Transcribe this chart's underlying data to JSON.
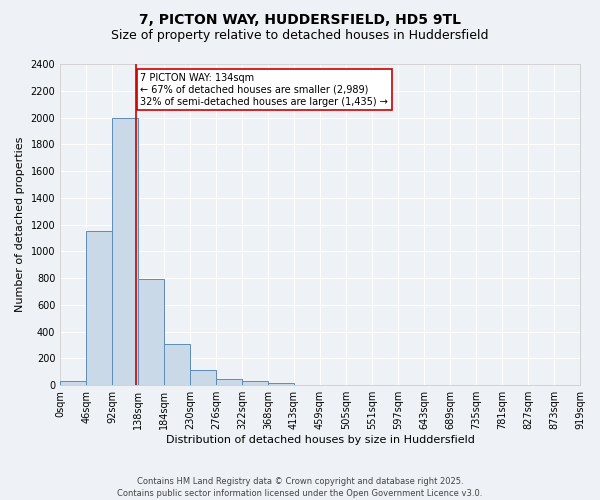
{
  "title_line1": "7, PICTON WAY, HUDDERSFIELD, HD5 9TL",
  "title_line2": "Size of property relative to detached houses in Huddersfield",
  "xlabel": "Distribution of detached houses by size in Huddersfield",
  "ylabel": "Number of detached properties",
  "bar_values": [
    30,
    1150,
    2000,
    795,
    310,
    110,
    50,
    35,
    15,
    5,
    0,
    0,
    0,
    0,
    0,
    0,
    0,
    0,
    0,
    0
  ],
  "bin_edges": [
    0,
    46,
    92,
    138,
    184,
    230,
    276,
    322,
    368,
    413,
    459,
    505,
    551,
    597,
    643,
    689,
    735,
    781,
    827,
    873,
    919
  ],
  "tick_labels": [
    "0sqm",
    "46sqm",
    "92sqm",
    "138sqm",
    "184sqm",
    "230sqm",
    "276sqm",
    "322sqm",
    "368sqm",
    "413sqm",
    "459sqm",
    "505sqm",
    "551sqm",
    "597sqm",
    "643sqm",
    "689sqm",
    "735sqm",
    "781sqm",
    "827sqm",
    "873sqm",
    "919sqm"
  ],
  "bar_color": "#c9d9e8",
  "bar_edge_color": "#5b8db8",
  "vline_x": 134,
  "vline_color": "#cc0000",
  "ylim": [
    0,
    2400
  ],
  "yticks": [
    0,
    200,
    400,
    600,
    800,
    1000,
    1200,
    1400,
    1600,
    1800,
    2000,
    2200,
    2400
  ],
  "annotation_title": "7 PICTON WAY: 134sqm",
  "annotation_line1": "← 67% of detached houses are smaller (2,989)",
  "annotation_line2": "32% of semi-detached houses are larger (1,435) →",
  "annotation_box_color": "#cc0000",
  "footnote1": "Contains HM Land Registry data © Crown copyright and database right 2025.",
  "footnote2": "Contains public sector information licensed under the Open Government Licence v3.0.",
  "bg_color": "#eef2f7",
  "grid_color": "#ffffff",
  "title_fontsize": 10,
  "subtitle_fontsize": 9,
  "annot_fontsize": 7,
  "axis_fontsize": 7.5,
  "tick_fontsize": 7,
  "ylabel_fontsize": 8,
  "xlabel_fontsize": 8
}
